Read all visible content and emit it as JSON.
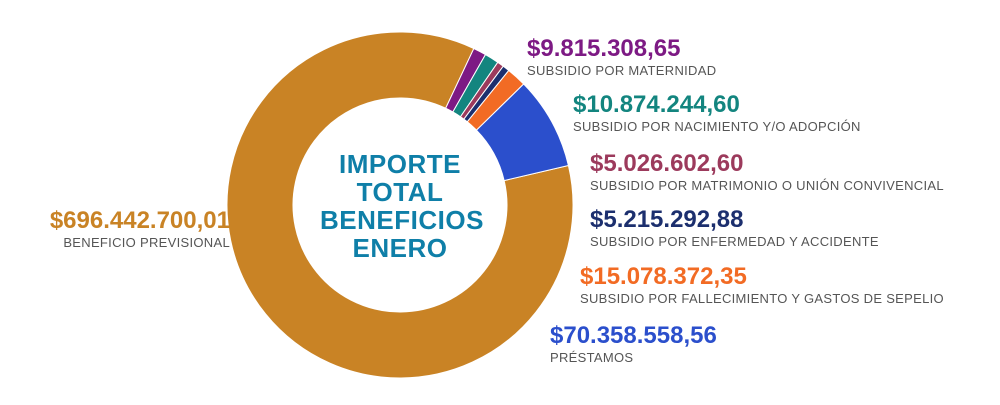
{
  "center_title": [
    "IMPORTE",
    "TOTAL",
    "BENEFICIOS",
    "ENERO"
  ],
  "chart_data": {
    "type": "pie",
    "title": "IMPORTE TOTAL BENEFICIOS ENERO",
    "slices": [
      {
        "label": "BENEFICIO PREVISIONAL",
        "amount_text": "$696.442.700,01",
        "value": 696442700.01,
        "color": "#c98325"
      },
      {
        "label": "SUBSIDIO POR MATERNIDAD",
        "amount_text": "$9.815.308,65",
        "value": 9815308.65,
        "color": "#7d1a84"
      },
      {
        "label": "SUBSIDIO POR NACIMIENTO Y/O ADOPCIÓN",
        "amount_text": "$10.874.244,60",
        "value": 10874244.6,
        "color": "#13857f"
      },
      {
        "label": "SUBSIDIO POR MATRIMONIO O UNIÓN CONVIVENCIAL",
        "amount_text": "$5.026.602,60",
        "value": 5026602.6,
        "color": "#9c3a5c"
      },
      {
        "label": "SUBSIDIO POR ENFERMEDAD Y ACCIDENTE",
        "amount_text": "$5.215.292,88",
        "value": 5215292.88,
        "color": "#1c2f6e"
      },
      {
        "label": "SUBSIDIO POR FALLECIMIENTO Y GASTOS DE SEPELIO",
        "amount_text": "$15.078.372,35",
        "value": 15078372.35,
        "color": "#f26b24"
      },
      {
        "label": "PRÉSTAMOS",
        "amount_text": "$70.358.558,56",
        "value": 70358558.56,
        "color": "#2b4fcc"
      }
    ]
  }
}
